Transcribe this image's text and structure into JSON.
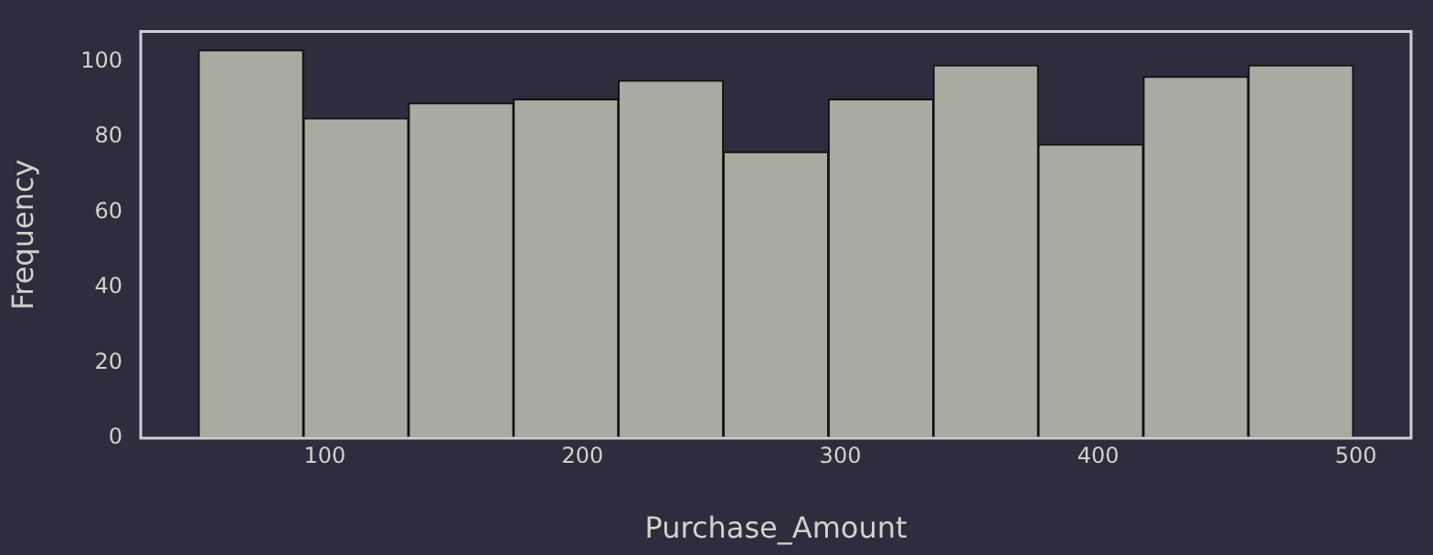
{
  "chart_data": {
    "type": "histogram",
    "xlabel": "Purchase_Amount",
    "ylabel": "Frequency",
    "bins": [
      51,
      91.7,
      132.5,
      173.2,
      213.9,
      254.6,
      295.4,
      336.1,
      376.8,
      417.5,
      458.3,
      499
    ],
    "values": [
      103,
      85,
      89,
      90,
      95,
      76,
      90,
      99,
      78,
      96,
      99
    ],
    "color": "#aaaaa3",
    "xlim": [
      28.6,
      521.4
    ],
    "xticks": [
      100,
      200,
      300,
      400,
      500
    ],
    "ylim": [
      0,
      108
    ],
    "yticks": [
      0,
      20,
      40,
      60,
      80,
      100
    ],
    "grid": false,
    "legend": false
  }
}
